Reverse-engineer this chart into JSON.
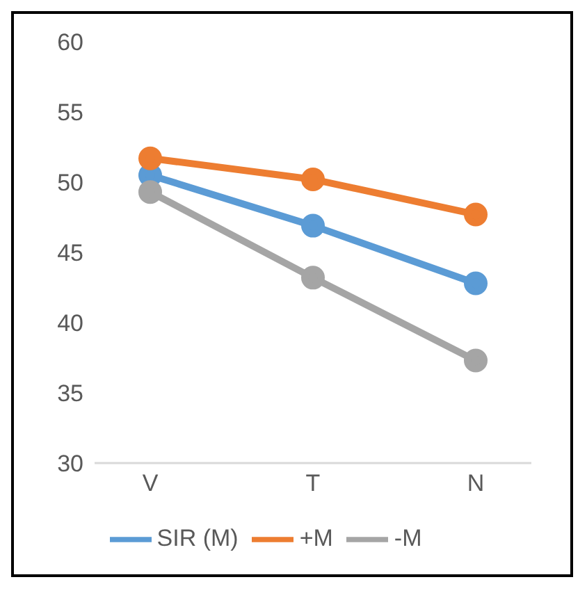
{
  "chart_data": {
    "type": "line",
    "categories": [
      "V",
      "T",
      "N"
    ],
    "series": [
      {
        "name": "SIR (M)",
        "color": "#5b9bd5",
        "values": [
          50.5,
          46.9,
          42.8
        ]
      },
      {
        "name": "+M",
        "color": "#ed7d31",
        "values": [
          51.7,
          50.2,
          47.7
        ]
      },
      {
        "name": "-M",
        "color": "#a5a5a5",
        "values": [
          49.3,
          43.2,
          37.3
        ]
      }
    ],
    "ylim": [
      30,
      60
    ],
    "yticks": [
      30,
      35,
      40,
      45,
      50,
      55,
      60
    ],
    "grid": false,
    "legend": "bottom",
    "marker": "circle",
    "line_style": "solid"
  }
}
